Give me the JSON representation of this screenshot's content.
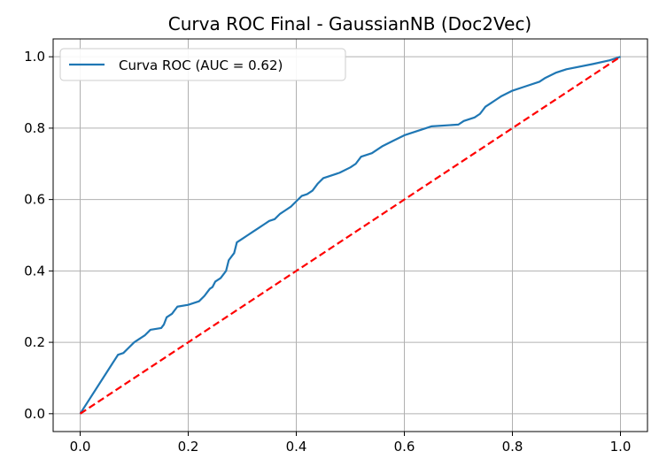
{
  "chart_data": {
    "type": "line",
    "title": "Curva ROC Final - GaussianNB (Doc2Vec)",
    "xlabel": "",
    "ylabel": "",
    "xlim": [
      -0.05,
      1.05
    ],
    "ylim": [
      -0.05,
      1.05
    ],
    "grid": true,
    "legend_position": "top-left",
    "x_ticks": [
      "0.0",
      "0.2",
      "0.4",
      "0.6",
      "0.8",
      "1.0"
    ],
    "y_ticks": [
      "0.0",
      "0.2",
      "0.4",
      "0.6",
      "0.8",
      "1.0"
    ],
    "series": [
      {
        "name": "Curva ROC (AUC = 0.62)",
        "color": "#1f77b4",
        "style": "solid",
        "x": [
          0.0,
          0.07,
          0.08,
          0.09,
          0.1,
          0.11,
          0.12,
          0.13,
          0.15,
          0.155,
          0.16,
          0.17,
          0.175,
          0.18,
          0.2,
          0.21,
          0.22,
          0.23,
          0.235,
          0.24,
          0.245,
          0.25,
          0.255,
          0.26,
          0.265,
          0.27,
          0.275,
          0.28,
          0.285,
          0.29,
          0.3,
          0.31,
          0.32,
          0.33,
          0.34,
          0.35,
          0.36,
          0.37,
          0.38,
          0.39,
          0.4,
          0.41,
          0.42,
          0.43,
          0.44,
          0.45,
          0.46,
          0.48,
          0.5,
          0.51,
          0.52,
          0.54,
          0.56,
          0.58,
          0.6,
          0.62,
          0.64,
          0.65,
          0.7,
          0.71,
          0.73,
          0.74,
          0.745,
          0.75,
          0.76,
          0.77,
          0.78,
          0.8,
          0.82,
          0.85,
          0.86,
          0.88,
          0.9,
          0.95,
          0.98,
          1.0
        ],
        "y": [
          0.0,
          0.165,
          0.17,
          0.185,
          0.2,
          0.21,
          0.22,
          0.235,
          0.24,
          0.25,
          0.27,
          0.28,
          0.29,
          0.3,
          0.305,
          0.31,
          0.315,
          0.33,
          0.34,
          0.35,
          0.355,
          0.37,
          0.375,
          0.38,
          0.39,
          0.4,
          0.43,
          0.44,
          0.45,
          0.48,
          0.49,
          0.5,
          0.51,
          0.52,
          0.53,
          0.54,
          0.545,
          0.56,
          0.57,
          0.58,
          0.595,
          0.61,
          0.615,
          0.625,
          0.645,
          0.66,
          0.665,
          0.675,
          0.69,
          0.7,
          0.72,
          0.73,
          0.75,
          0.765,
          0.78,
          0.79,
          0.8,
          0.805,
          0.81,
          0.82,
          0.83,
          0.84,
          0.85,
          0.86,
          0.87,
          0.88,
          0.89,
          0.905,
          0.915,
          0.93,
          0.94,
          0.955,
          0.965,
          0.98,
          0.99,
          1.0
        ]
      },
      {
        "name": "",
        "color": "#ff0000",
        "style": "dashed",
        "x": [
          0.0,
          1.0
        ],
        "y": [
          0.0,
          1.0
        ]
      }
    ]
  }
}
